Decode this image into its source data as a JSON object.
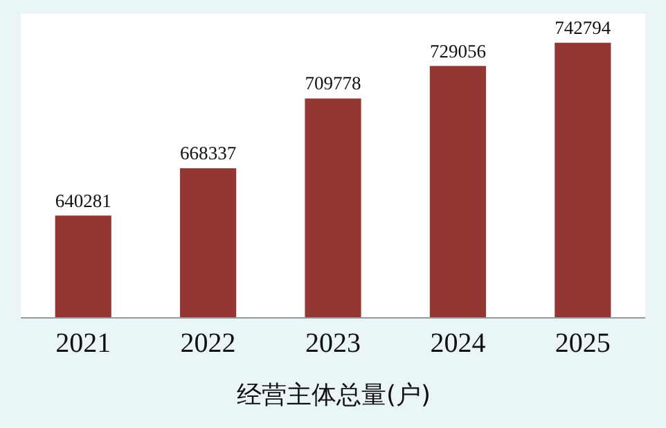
{
  "chart_data": {
    "type": "bar",
    "title": "经营主体总量(户)",
    "categories": [
      "2021",
      "2022",
      "2023",
      "2024",
      "2025"
    ],
    "values": [
      640281,
      668337,
      709778,
      729056,
      742794
    ],
    "color": "#943634",
    "data_labels": true,
    "ylim": [
      580000,
      760000
    ]
  }
}
